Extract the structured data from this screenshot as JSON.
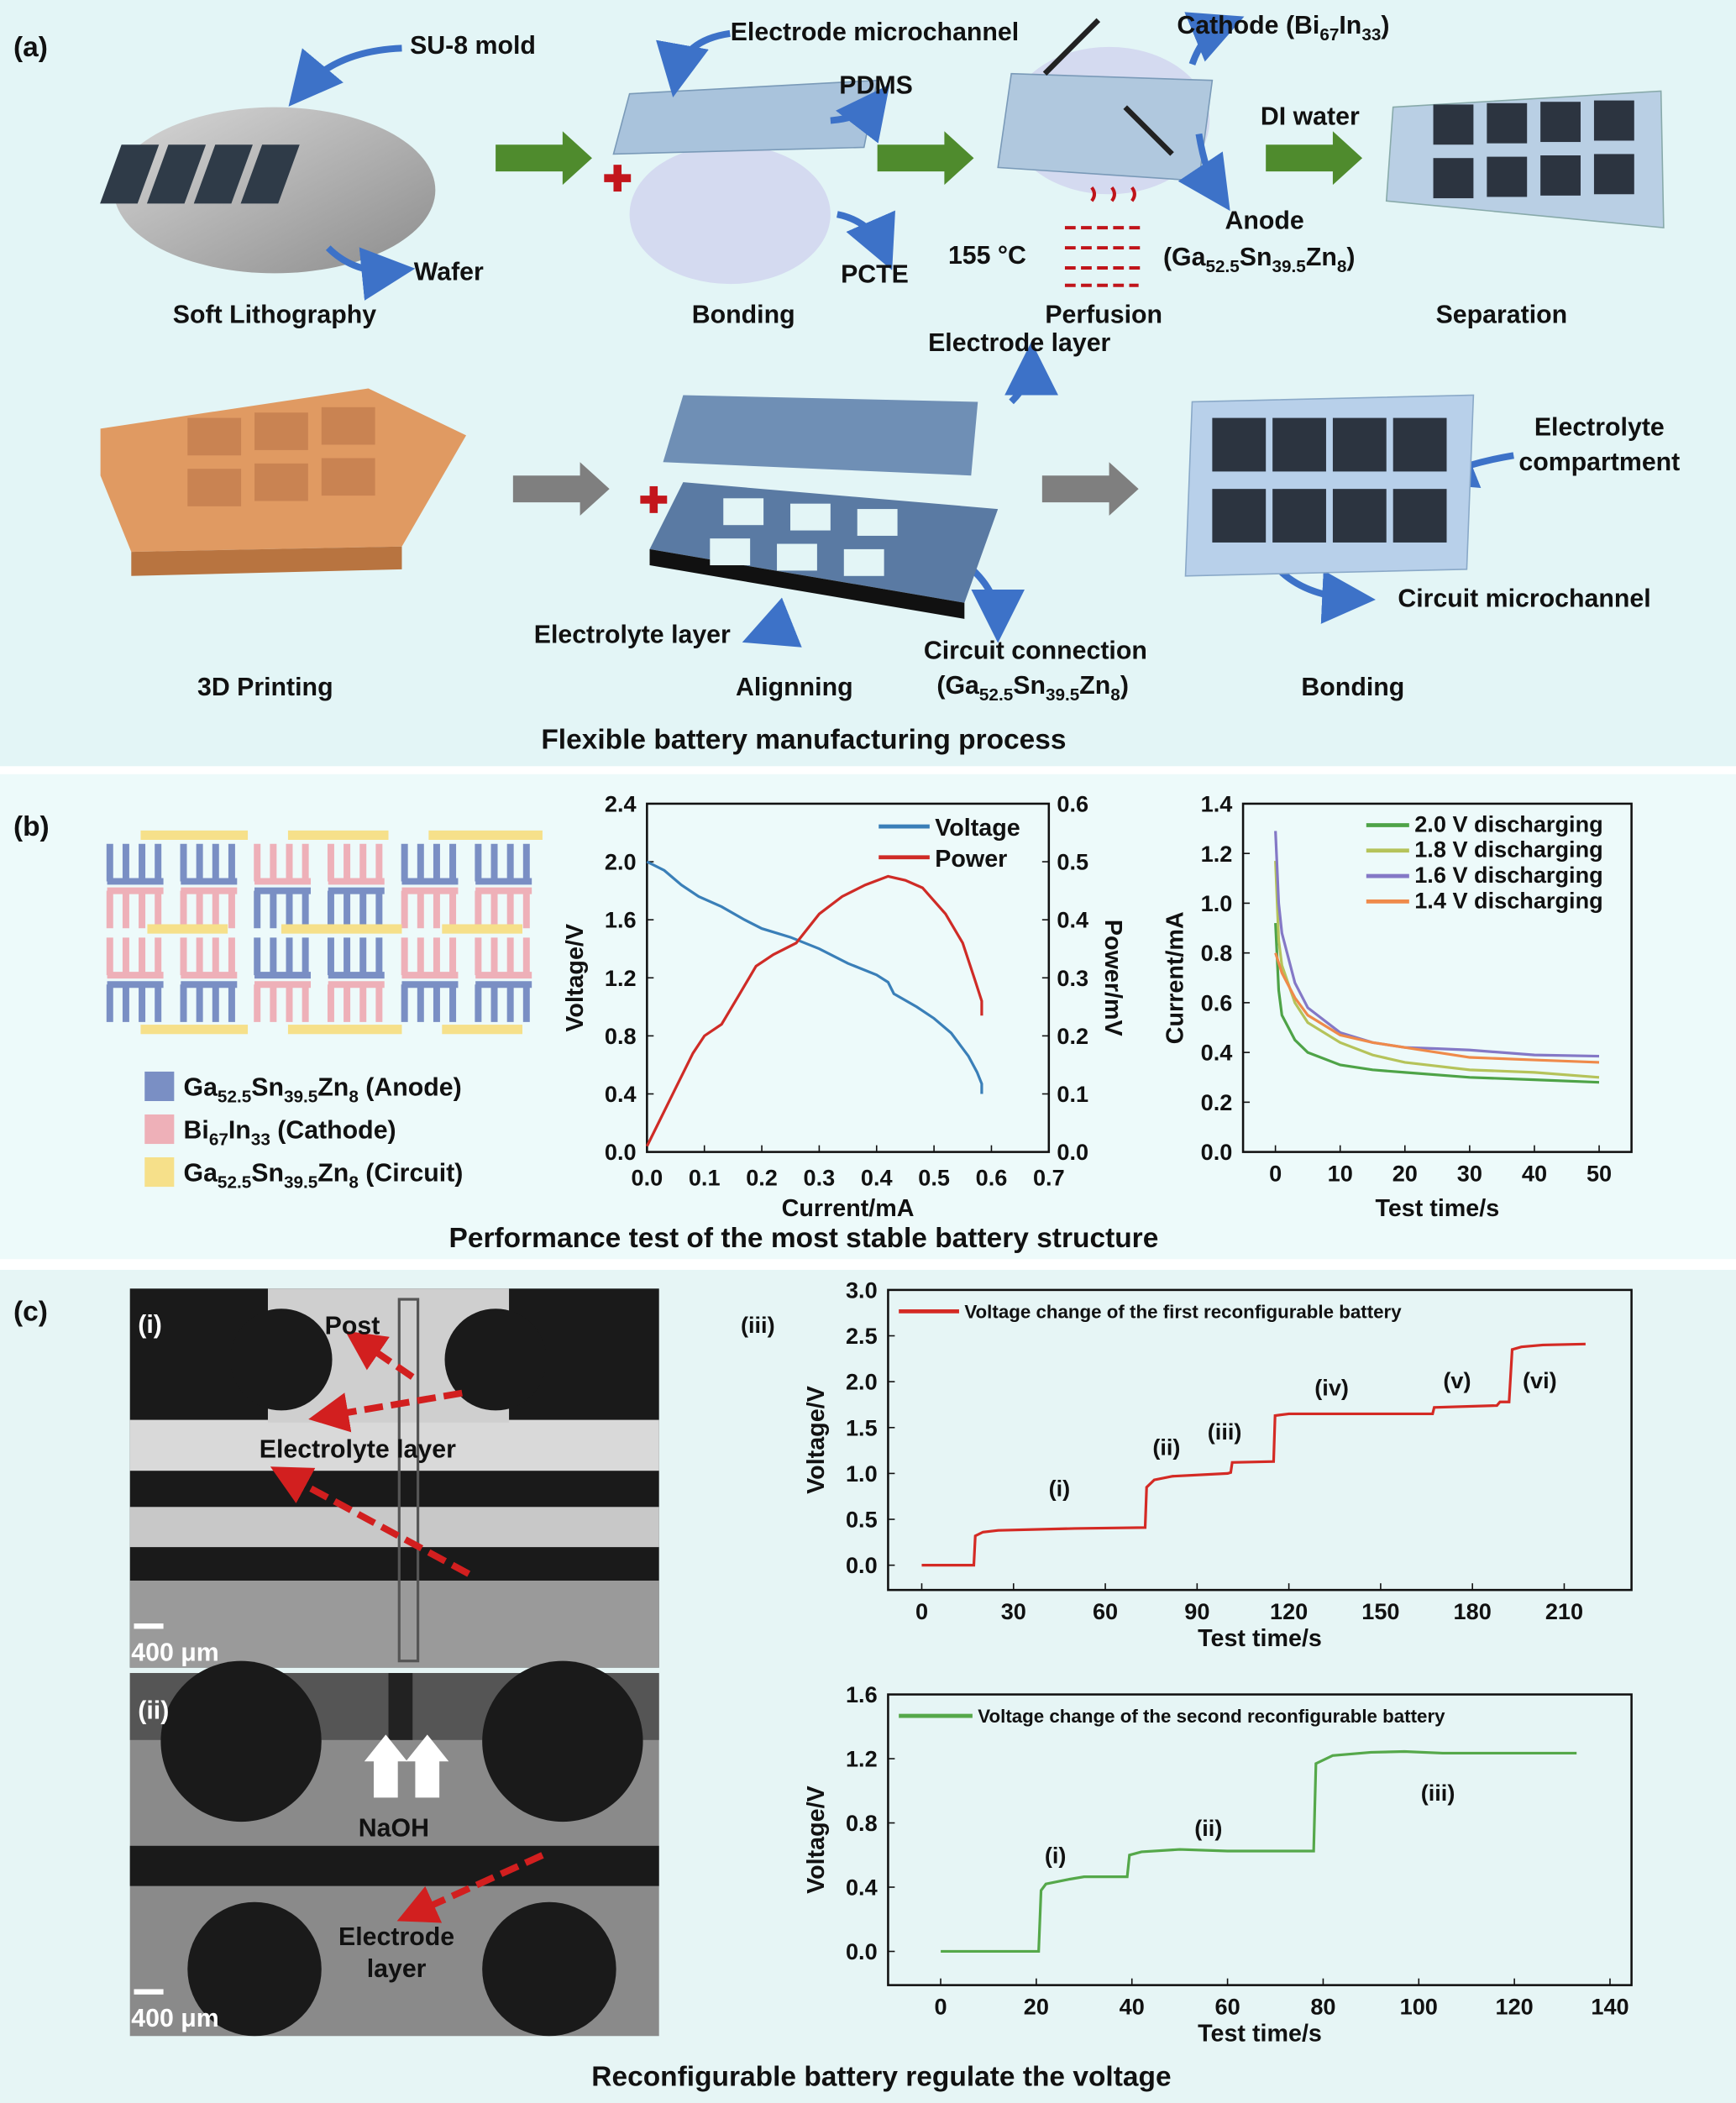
{
  "colors": {
    "panel_a_bg": "#e3f5f6",
    "panel_b_bg": "#edfafa",
    "panel_c_bg": "#e6f5f5",
    "process_arrow": "#4f8b2d",
    "assembly_arrow": "#7f7f7f",
    "callout_arrow": "#3d72c8",
    "plus": "#c3161c",
    "anode": "#7a8fc4",
    "cathode": "#eeb0b8",
    "circuit": "#f6e08a"
  },
  "panel_a": {
    "label": "(a)",
    "su8_mold": "SU-8 mold",
    "electrode_microchannel": "Electrode microchannel",
    "cathode": [
      "Cathode (Bi",
      "67",
      "In",
      "33",
      ")"
    ],
    "pdms": "PDMS",
    "di_water": "DI water",
    "anode": "Anode",
    "anode_formula": [
      "(Ga",
      "52.5",
      "Sn",
      "39.5",
      "Zn",
      "8",
      ")"
    ],
    "temperature": "155 °C",
    "wafer": "Wafer",
    "pcte": "PCTE",
    "steps_top": [
      "Soft Lithography",
      "Bonding",
      "Perfusion",
      "Separation"
    ],
    "electrode_layer": "Electrode layer",
    "electrolyte_compartment": [
      "Electrolyte",
      "compartment"
    ],
    "circuit_microchannel": "Circuit microchannel",
    "electrolyte_layer": "Electrolyte layer",
    "circuit_connection": "Circuit connection",
    "circuit_formula": [
      "(Ga",
      "52.5",
      "Sn",
      "39.5",
      "Zn",
      "8",
      ")"
    ],
    "steps_bottom": [
      "3D Printing",
      "Alignning",
      "Bonding"
    ],
    "caption": "Flexible battery manufacturing process"
  },
  "panel_b": {
    "label": "(b)",
    "legend": [
      {
        "parts": [
          "Ga",
          "52.5",
          "Sn",
          "39.5",
          "Zn",
          "8",
          " (Anode)"
        ],
        "color": "#7a8fc4"
      },
      {
        "parts": [
          "Bi",
          "67",
          "In",
          "33",
          " (Cathode)"
        ],
        "color": "#eeb0b8"
      },
      {
        "parts": [
          "Ga",
          "52.5",
          "Sn",
          "39.5",
          "Zn",
          "8",
          " (Circuit)"
        ],
        "color": "#f6e08a"
      }
    ],
    "caption": "Performance test of the most stable battery structure"
  },
  "panel_c": {
    "label": "(c)",
    "image_i": {
      "label": "(i)",
      "post": "Post",
      "electrolyte_layer": "Electrolyte layer",
      "scale": "400 μm"
    },
    "image_ii": {
      "label": "(ii)",
      "naoh": "NaOH",
      "electrode_layer": [
        "Electrode",
        "layer"
      ],
      "scale": "400 μm"
    },
    "chart_label": "(iii)",
    "caption": "Reconfigurable battery regulate the voltage"
  },
  "chart_data": [
    {
      "id": "b1",
      "type": "line",
      "xlabel": "Current/mA",
      "ylabel": "Voltage/V",
      "y2label": "Power/mV",
      "xlim": [
        0,
        0.7
      ],
      "ylim": [
        0,
        2.4
      ],
      "y2lim": [
        0,
        0.6
      ],
      "x_ticks": [
        "0.0",
        "0.1",
        "0.2",
        "0.3",
        "0.4",
        "0.5",
        "0.6",
        "0.7"
      ],
      "y_ticks": [
        "0.0",
        "0.4",
        "0.8",
        "1.2",
        "1.6",
        "2.0",
        "2.4"
      ],
      "y2_ticks": [
        "0.0",
        "0.1",
        "0.2",
        "0.3",
        "0.4",
        "0.5",
        "0.6"
      ],
      "legend": "top-right",
      "series": [
        {
          "name": "Voltage",
          "color": "#3a7fb8",
          "axis": "left",
          "points": [
            [
              0,
              2.0
            ],
            [
              0.03,
              1.94
            ],
            [
              0.06,
              1.84
            ],
            [
              0.09,
              1.76
            ],
            [
              0.13,
              1.69
            ],
            [
              0.17,
              1.6
            ],
            [
              0.2,
              1.54
            ],
            [
              0.25,
              1.48
            ],
            [
              0.3,
              1.4
            ],
            [
              0.35,
              1.3
            ],
            [
              0.4,
              1.22
            ],
            [
              0.42,
              1.17
            ],
            [
              0.43,
              1.09
            ],
            [
              0.47,
              1.0
            ],
            [
              0.5,
              0.92
            ],
            [
              0.53,
              0.82
            ],
            [
              0.56,
              0.66
            ],
            [
              0.575,
              0.55
            ],
            [
              0.583,
              0.47
            ],
            [
              0.583,
              0.4
            ]
          ]
        },
        {
          "name": "Power",
          "color": "#cf2b26",
          "axis": "right",
          "points": [
            [
              0,
              0.01
            ],
            [
              0.02,
              0.05
            ],
            [
              0.05,
              0.11
            ],
            [
              0.08,
              0.17
            ],
            [
              0.1,
              0.2
            ],
            [
              0.13,
              0.22
            ],
            [
              0.16,
              0.27
            ],
            [
              0.19,
              0.32
            ],
            [
              0.22,
              0.34
            ],
            [
              0.26,
              0.36
            ],
            [
              0.3,
              0.41
            ],
            [
              0.34,
              0.44
            ],
            [
              0.38,
              0.46
            ],
            [
              0.42,
              0.475
            ],
            [
              0.45,
              0.468
            ],
            [
              0.48,
              0.455
            ],
            [
              0.52,
              0.41
            ],
            [
              0.55,
              0.36
            ],
            [
              0.57,
              0.3
            ],
            [
              0.583,
              0.26
            ],
            [
              0.583,
              0.235
            ]
          ]
        }
      ]
    },
    {
      "id": "b2",
      "type": "line",
      "xlabel": "Test time/s",
      "ylabel": "Current/mA",
      "xlim": [
        -5,
        55
      ],
      "ylim": [
        0,
        1.4
      ],
      "x_ticks": [
        "0",
        "10",
        "20",
        "30",
        "40",
        "50"
      ],
      "y_ticks": [
        "0.0",
        "0.2",
        "0.4",
        "0.6",
        "0.8",
        "1.0",
        "1.2",
        "1.4"
      ],
      "legend": "top-right",
      "series": [
        {
          "name": "2.0 V discharging",
          "color": "#4ea347",
          "points": [
            [
              0,
              0.92
            ],
            [
              0.5,
              0.65
            ],
            [
              1,
              0.55
            ],
            [
              3,
              0.45
            ],
            [
              5,
              0.4
            ],
            [
              10,
              0.35
            ],
            [
              15,
              0.33
            ],
            [
              20,
              0.32
            ],
            [
              30,
              0.3
            ],
            [
              40,
              0.29
            ],
            [
              50,
              0.28
            ]
          ]
        },
        {
          "name": "1.8 V discharging",
          "color": "#b5c35a",
          "points": [
            [
              0,
              1.17
            ],
            [
              0.5,
              0.85
            ],
            [
              1,
              0.75
            ],
            [
              3,
              0.6
            ],
            [
              5,
              0.52
            ],
            [
              10,
              0.44
            ],
            [
              15,
              0.39
            ],
            [
              20,
              0.36
            ],
            [
              30,
              0.33
            ],
            [
              40,
              0.32
            ],
            [
              50,
              0.3
            ]
          ]
        },
        {
          "name": "1.6 V discharging",
          "color": "#8478c6",
          "points": [
            [
              0,
              1.29
            ],
            [
              0.5,
              1.0
            ],
            [
              1,
              0.88
            ],
            [
              3,
              0.68
            ],
            [
              5,
              0.58
            ],
            [
              10,
              0.48
            ],
            [
              15,
              0.44
            ],
            [
              20,
              0.42
            ],
            [
              25,
              0.415
            ],
            [
              30,
              0.41
            ],
            [
              40,
              0.39
            ],
            [
              50,
              0.385
            ]
          ]
        },
        {
          "name": "1.4 V discharging",
          "color": "#ef8a4a",
          "points": [
            [
              0,
              0.8
            ],
            [
              1,
              0.72
            ],
            [
              3,
              0.62
            ],
            [
              5,
              0.55
            ],
            [
              10,
              0.47
            ],
            [
              15,
              0.44
            ],
            [
              20,
              0.42
            ],
            [
              30,
              0.38
            ],
            [
              40,
              0.37
            ],
            [
              50,
              0.36
            ]
          ]
        }
      ]
    },
    {
      "id": "c1",
      "type": "line",
      "xlabel": "Test time/s",
      "ylabel": "Voltage/V",
      "xlim": [
        -11,
        232
      ],
      "ylim": [
        -0.27,
        3.0
      ],
      "x_ticks": [
        "0",
        "30",
        "60",
        "90",
        "120",
        "150",
        "180",
        "210"
      ],
      "y_ticks": [
        "0.0",
        "0.5",
        "1.0",
        "1.5",
        "2.0",
        "2.5",
        "3.0"
      ],
      "legend": "top-left",
      "series": [
        {
          "name": "Voltage change of the first reconfigurable battery",
          "color": "#d42a24",
          "points": [
            [
              0,
              0
            ],
            [
              17,
              0
            ],
            [
              17.5,
              0.32
            ],
            [
              20,
              0.36
            ],
            [
              25,
              0.38
            ],
            [
              50,
              0.4
            ],
            [
              73,
              0.41
            ],
            [
              73.5,
              0.85
            ],
            [
              76,
              0.93
            ],
            [
              82,
              0.97
            ],
            [
              100,
              1.0
            ],
            [
              101,
              1.01
            ],
            [
              101.5,
              1.12
            ],
            [
              115,
              1.13
            ],
            [
              115.5,
              1.63
            ],
            [
              120,
              1.65
            ],
            [
              167,
              1.65
            ],
            [
              167.5,
              1.72
            ],
            [
              188,
              1.74
            ],
            [
              189,
              1.78
            ],
            [
              192,
              1.78
            ],
            [
              193,
              2.35
            ],
            [
              196,
              2.38
            ],
            [
              203,
              2.4
            ],
            [
              217,
              2.41
            ]
          ]
        }
      ],
      "annotations": [
        {
          "text": "(i)",
          "x": 45,
          "y": 0.75
        },
        {
          "text": "(ii)",
          "x": 80,
          "y": 1.2
        },
        {
          "text": "(iii)",
          "x": 99,
          "y": 1.37
        },
        {
          "text": "(iv)",
          "x": 134,
          "y": 1.85
        },
        {
          "text": "(v)",
          "x": 175,
          "y": 1.93
        },
        {
          "text": "(vi)",
          "x": 202,
          "y": 1.93
        }
      ]
    },
    {
      "id": "c2",
      "type": "line",
      "xlabel": "Test time/s",
      "ylabel": "Voltage/V",
      "xlim": [
        -11,
        144.5
      ],
      "ylim": [
        -0.21,
        1.6
      ],
      "x_ticks": [
        "0",
        "20",
        "40",
        "60",
        "80",
        "100",
        "120",
        "140"
      ],
      "y_ticks": [
        "0.0",
        "0.4",
        "0.8",
        "1.2",
        "1.6"
      ],
      "legend": "top-left",
      "series": [
        {
          "name": "Voltage change of the second reconfigurable battery",
          "color": "#55a84a",
          "points": [
            [
              0,
              0
            ],
            [
              20.5,
              0
            ],
            [
              21,
              0.38
            ],
            [
              22,
              0.42
            ],
            [
              27,
              0.45
            ],
            [
              30,
              0.465
            ],
            [
              39,
              0.465
            ],
            [
              39.5,
              0.6
            ],
            [
              42,
              0.62
            ],
            [
              50,
              0.635
            ],
            [
              60,
              0.625
            ],
            [
              78,
              0.625
            ],
            [
              78.5,
              1.17
            ],
            [
              82,
              1.22
            ],
            [
              90,
              1.24
            ],
            [
              97,
              1.245
            ],
            [
              105,
              1.235
            ],
            [
              133,
              1.235
            ]
          ]
        }
      ],
      "annotations": [
        {
          "text": "(i)",
          "x": 24,
          "y": 0.55
        },
        {
          "text": "(ii)",
          "x": 56,
          "y": 0.72
        },
        {
          "text": "(iii)",
          "x": 104,
          "y": 0.94
        }
      ]
    }
  ]
}
